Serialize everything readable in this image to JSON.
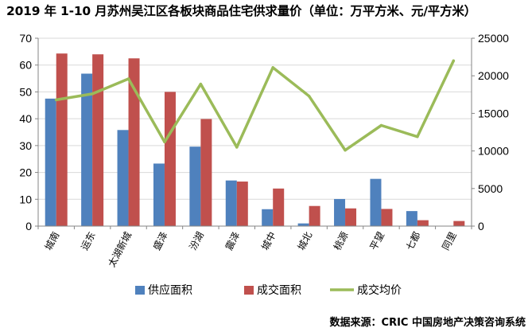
{
  "title": "2019 年 1-10 月苏州吴江区各板块商品住宅供求量价（单位：万平方米、元/平方米）",
  "source": "数据来源：CRIC 中国房地产决策咨询系统",
  "colors": {
    "supply": "#4f81bd",
    "deal": "#c0504d",
    "price": "#9bbb59",
    "axis": "#868686",
    "grid": "#d9d9d9"
  },
  "chart_data": {
    "type": "bar",
    "title": "2019 年 1-10 月苏州吴江区各板块商品住宅供求量价（单位：万平方米、元/平方米）",
    "categories": [
      "城南",
      "运东",
      "太湖新城",
      "盛泽",
      "汾湖",
      "震泽",
      "城中",
      "城北",
      "桃源",
      "平望",
      "七都",
      "同里"
    ],
    "series": [
      {
        "name": "供应面积",
        "type": "bar",
        "axis": "left",
        "values": [
          47.5,
          56.8,
          35.8,
          23.3,
          29.6,
          17.0,
          6.3,
          1.0,
          10.1,
          17.6,
          5.6,
          0.0
        ]
      },
      {
        "name": "成交面积",
        "type": "bar",
        "axis": "left",
        "values": [
          64.3,
          64.0,
          62.5,
          50.0,
          39.9,
          16.6,
          14.0,
          7.5,
          6.6,
          6.4,
          2.2,
          1.9
        ]
      },
      {
        "name": "成交均价",
        "type": "line",
        "axis": "right",
        "values": [
          16800,
          17600,
          19600,
          11200,
          18900,
          10500,
          21100,
          17300,
          10100,
          13400,
          11900,
          22000
        ]
      }
    ],
    "y_left": {
      "range": [
        0,
        70
      ],
      "ticks": [
        0,
        10,
        20,
        30,
        40,
        50,
        60,
        70
      ]
    },
    "y_right": {
      "range": [
        0,
        25000
      ],
      "ticks": [
        0,
        5000,
        10000,
        15000,
        20000,
        25000
      ]
    },
    "grid": true,
    "legend": "bottom"
  }
}
